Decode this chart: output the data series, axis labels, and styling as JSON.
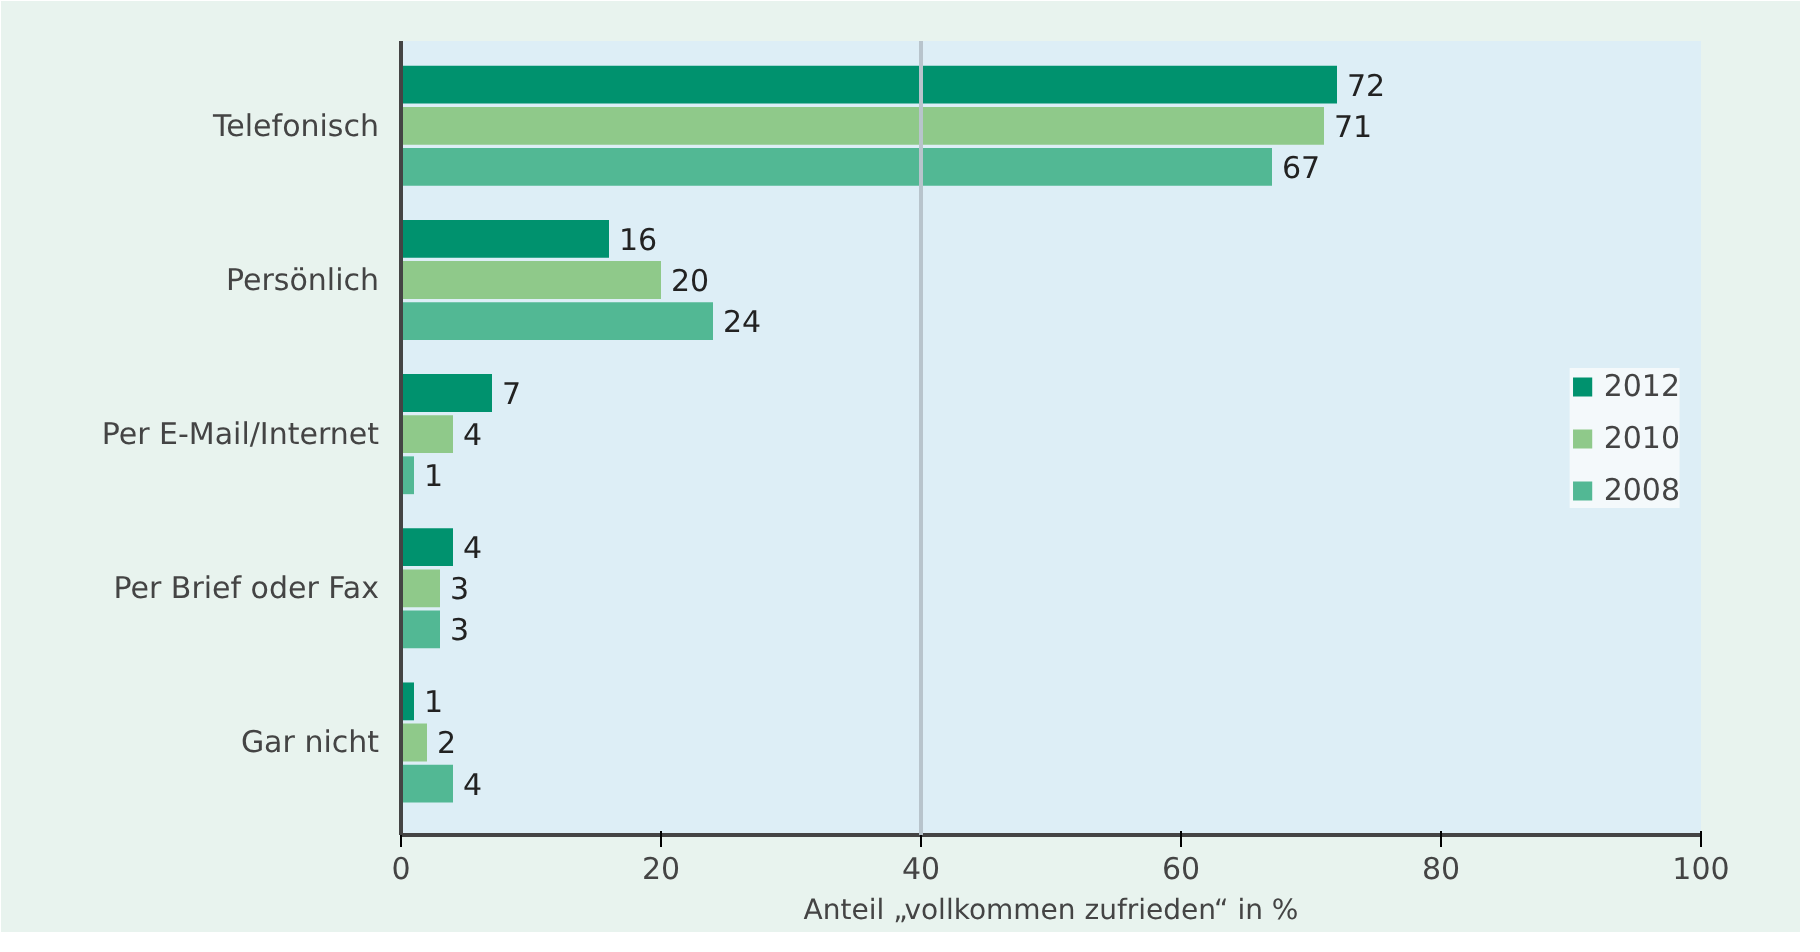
{
  "chart_data": {
    "type": "bar",
    "orientation": "horizontal",
    "xlabel": "Anteil „vollkommen zufrieden“ in %",
    "categories": [
      "Telefonisch",
      "Persönlich",
      "Per E-Mail/Internet",
      "Per Brief oder Fax",
      "Gar nicht"
    ],
    "series": [
      {
        "name": "2012",
        "color": "#00926e",
        "values": [
          72,
          16,
          7,
          4,
          1
        ]
      },
      {
        "name": "2010",
        "color": "#8fc98a",
        "values": [
          71,
          20,
          4,
          3,
          2
        ]
      },
      {
        "name": "2008",
        "color": "#52b894",
        "values": [
          67,
          24,
          1,
          3,
          4
        ]
      }
    ],
    "xlim": [
      0,
      100
    ],
    "xticks": [
      0,
      20,
      40,
      60,
      80,
      100
    ],
    "ref_lines": [
      {
        "axis": "x",
        "value": 40,
        "label": null,
        "color": "#b8c4cc"
      }
    ],
    "data_labels": true,
    "legend": "right",
    "grid": false
  }
}
